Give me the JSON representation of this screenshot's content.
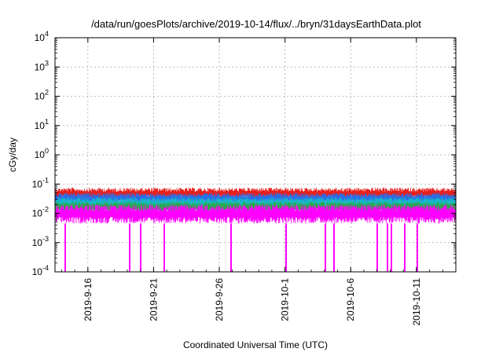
{
  "chart_data": {
    "type": "line",
    "title": "/data/run/goesPlots/archive/2019-10-14/flux/../bryn/31daysEarthData.plot",
    "xlabel": "Coordinated Universal Time (UTC)",
    "ylabel": "cGy/day",
    "yscale": "log",
    "ylim": [
      0.0001,
      10000
    ],
    "xlim": [
      "2019-09-13T12:00",
      "2019-10-14T00:00"
    ],
    "grid": true,
    "y_ticks": [
      {
        "base": "10",
        "exp": "-4",
        "value": 0.0001
      },
      {
        "base": "10",
        "exp": "-3",
        "value": 0.001
      },
      {
        "base": "10",
        "exp": "-2",
        "value": 0.01
      },
      {
        "base": "10",
        "exp": "-1",
        "value": 0.1
      },
      {
        "base": "10",
        "exp": "0",
        "value": 1
      },
      {
        "base": "10",
        "exp": "1",
        "value": 10
      },
      {
        "base": "10",
        "exp": "2",
        "value": 100
      },
      {
        "base": "10",
        "exp": "3",
        "value": 1000
      },
      {
        "base": "10",
        "exp": "4",
        "value": 10000
      }
    ],
    "x_ticks": [
      {
        "label": "2019-9-16",
        "date": "2019-09-16"
      },
      {
        "label": "2019-9-21",
        "date": "2019-09-21"
      },
      {
        "label": "2019-9-26",
        "date": "2019-09-26"
      },
      {
        "label": "2019-10-1",
        "date": "2019-10-01"
      },
      {
        "label": "2019-10-6",
        "date": "2019-10-06"
      },
      {
        "label": "2019-10-11",
        "date": "2019-10-11"
      }
    ],
    "series": [
      {
        "color": "#e8201c",
        "min": 0.03,
        "max": 0.075
      },
      {
        "color": "#2a6ee6",
        "min": 0.02,
        "max": 0.05
      },
      {
        "color": "#18b8c8",
        "min": 0.014,
        "max": 0.035
      },
      {
        "color": "#2aa84a",
        "min": 0.01,
        "max": 0.025
      },
      {
        "color": "#ff00ff",
        "min": 0.0045,
        "max": 0.02
      }
    ],
    "dropouts": [
      "2019-09-14T06:00",
      "2019-09-19T05:00",
      "2019-09-20T00:00",
      "2019-09-21T20:00",
      "2019-09-26T22:00",
      "2019-10-01T02:00",
      "2019-10-04T02:00",
      "2019-10-04T17:00",
      "2019-10-08T01:00",
      "2019-10-08T19:00",
      "2019-10-09T02:00",
      "2019-10-10T03:00",
      "2019-10-11T01:00"
    ]
  }
}
